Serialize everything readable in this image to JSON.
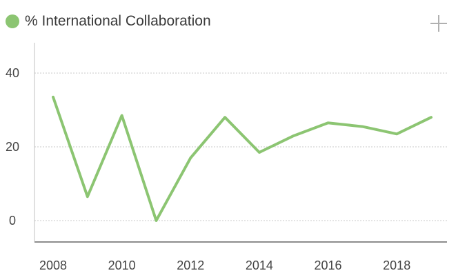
{
  "card": {
    "title": "% International Collaboration"
  },
  "chart_data": {
    "type": "line",
    "title": "% International Collaboration",
    "xlabel": "",
    "ylabel": "",
    "x": [
      2008,
      2009,
      2010,
      2011,
      2012,
      2013,
      2014,
      2015,
      2016,
      2017,
      2018,
      2019
    ],
    "series": [
      {
        "values": [
          33.5,
          6.5,
          28.5,
          0,
          17,
          28,
          18.5,
          23,
          26.5,
          25.5,
          23.5,
          28
        ],
        "color": "#8cc572"
      }
    ],
    "yticks": [
      "0",
      "20",
      "40"
    ],
    "xticks": [
      "2008",
      "2010",
      "2012",
      "2014",
      "2016",
      "2018"
    ],
    "xlim": [
      2008,
      2019
    ],
    "ylim": [
      0,
      40
    ],
    "grid": true,
    "legend": "top-left"
  },
  "icons": {
    "add": "plus-icon"
  }
}
